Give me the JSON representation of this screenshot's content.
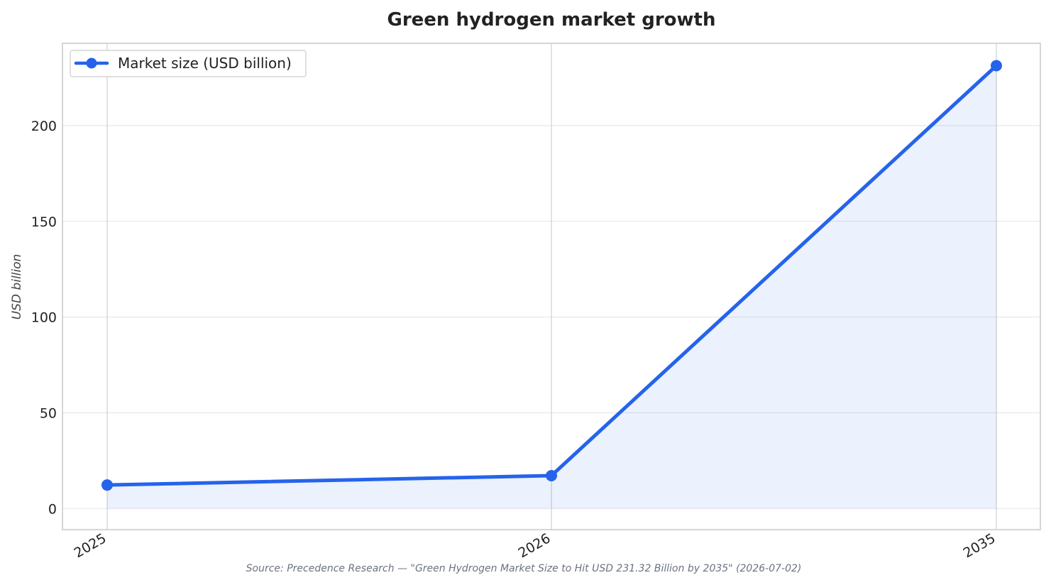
{
  "chart_data": {
    "type": "line",
    "title": "Green hydrogen market growth",
    "xlabel": "",
    "ylabel": "USD billion",
    "categories": [
      "2025",
      "2026",
      "2035"
    ],
    "series": [
      {
        "name": "Market size (USD billion)",
        "values": [
          12.3,
          17.2,
          231.32
        ]
      }
    ],
    "ylim": [
      -11,
      243
    ],
    "yticks": [
      0,
      50,
      100,
      150,
      200
    ],
    "grid": true,
    "legend_position": "top-left",
    "area_fill": true,
    "source": "Source: Precedence Research — \"Green Hydrogen Market Size to Hit USD 231.32 Billion by 2035\" (2026-07-02)",
    "colors": {
      "line": "#2563eb",
      "fill": "#2563eb",
      "grid": "#e8e8e8",
      "vgrid": "#cdd0d6",
      "spine": "#c8c8c8"
    }
  }
}
